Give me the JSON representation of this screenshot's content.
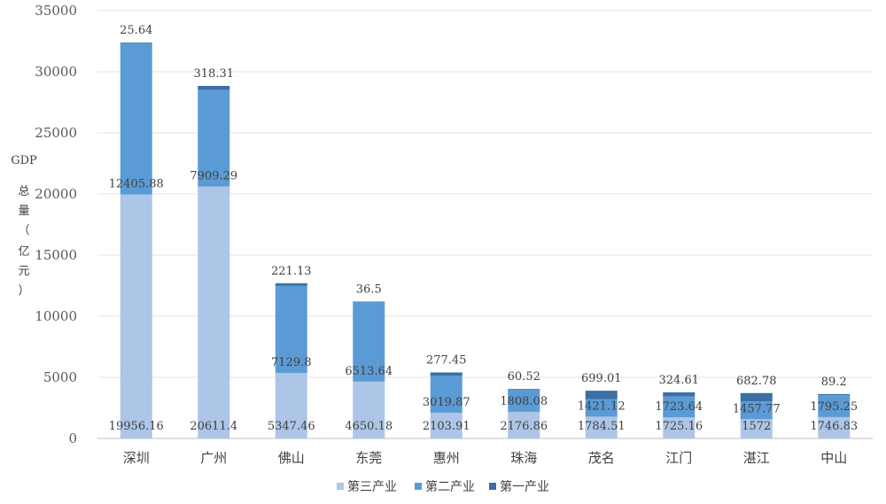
{
  "chart_data": {
    "type": "bar",
    "stacked": true,
    "ylabel": "GDP总量（亿元）",
    "ylim": [
      0,
      35000
    ],
    "yticks": [
      0,
      5000,
      10000,
      15000,
      20000,
      25000,
      30000,
      35000
    ],
    "grid": true,
    "legend_position": "bottom",
    "categories": [
      "深圳",
      "广州",
      "佛山",
      "东莞",
      "惠州",
      "珠海",
      "茂名",
      "江门",
      "湛江",
      "中山"
    ],
    "series": [
      {
        "name": "第三产业",
        "color": "#adc5e7",
        "values": [
          19956.16,
          20611.4,
          5347.46,
          4650.18,
          2103.91,
          2176.86,
          1784.51,
          1725.16,
          1572,
          1746.83
        ]
      },
      {
        "name": "第二产业",
        "color": "#5b9bd5",
        "values": [
          12405.88,
          7909.29,
          7129.8,
          6513.64,
          3019.87,
          1808.08,
          1421.12,
          1723.64,
          1457.77,
          1795.25
        ]
      },
      {
        "name": "第一产业",
        "color": "#3b6fa6",
        "values": [
          25.64,
          318.31,
          221.13,
          36.5,
          277.45,
          60.52,
          699.01,
          324.61,
          682.78,
          89.2
        ]
      }
    ]
  }
}
